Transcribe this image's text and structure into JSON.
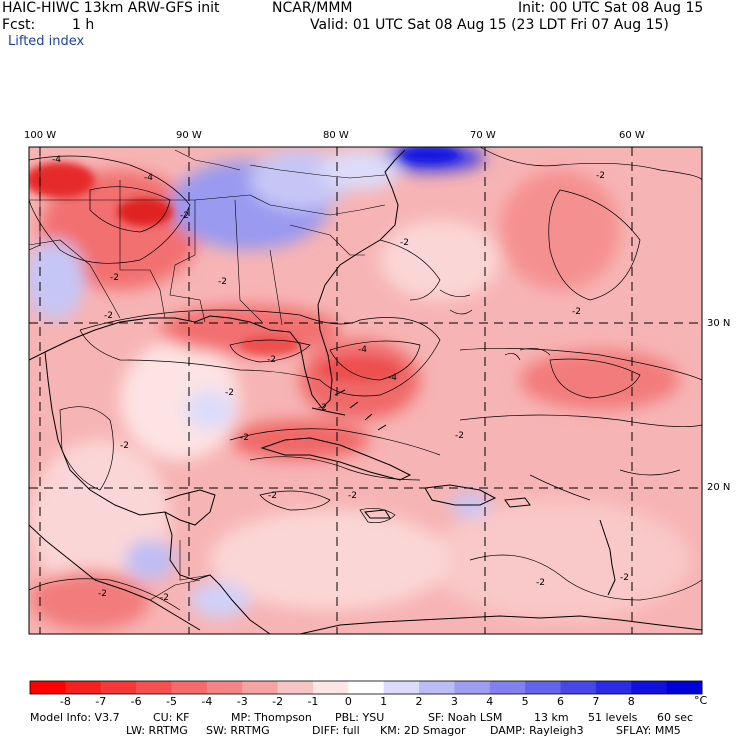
{
  "header": {
    "model_title": "HAIC-HIWC 13km ARW-GFS init",
    "org": "NCAR/MMM",
    "init": "Init: 00 UTC Sat 08 Aug 15",
    "fcst_label": "Fcst:",
    "fcst_value": "1 h",
    "valid": "Valid: 01 UTC Sat 08 Aug 15 (23 LDT Fri 07 Aug 15)",
    "field_name": "Lifted index"
  },
  "map": {
    "lon_labels": [
      "100 W",
      "90 W",
      "80 W",
      "70 W",
      "60 W"
    ],
    "lat_labels": [
      "30 N",
      "20 N"
    ],
    "contour_labels": [
      "-4",
      "-4",
      "-2",
      "-2",
      "-2",
      "-2",
      "-2",
      "-2",
      "-4",
      "-2",
      "-2",
      "-2",
      "-4",
      "-2",
      "-2",
      "-2",
      "-2",
      "-2",
      "-2",
      "-2",
      "-2",
      "-2",
      "-2"
    ]
  },
  "colorbar": {
    "unit": "°C",
    "ticks": [
      "-8",
      "-7",
      "-6",
      "-5",
      "-4",
      "-3",
      "-2",
      "-1",
      "0",
      "1",
      "2",
      "3",
      "4",
      "5",
      "6",
      "7",
      "8"
    ],
    "colors": [
      "#ff0000",
      "#f52020",
      "#f53838",
      "#f55050",
      "#f56a6a",
      "#f58585",
      "#f5a3a3",
      "#f7c5c5",
      "#ffe5e5",
      "#ffffff",
      "#dcdcfa",
      "#bdbdf5",
      "#9e9ef0",
      "#8080ee",
      "#6464ea",
      "#4848e6",
      "#2c2ce4",
      "#1010e0",
      "#0000d8"
    ]
  },
  "model_info": {
    "line1": [
      "Model Info: V3.7",
      "CU: KF",
      "MP: Thompson",
      "PBL: YSU",
      "SF: Noah LSM",
      "13 km",
      "51 levels",
      "60 sec"
    ],
    "line2": [
      "LW: RRTMG",
      "SW: RRTMG",
      "DIFF: full",
      "KM: 2D Smagor",
      "DAMP: Rayleigh3",
      "SFLAY: MM5"
    ]
  }
}
